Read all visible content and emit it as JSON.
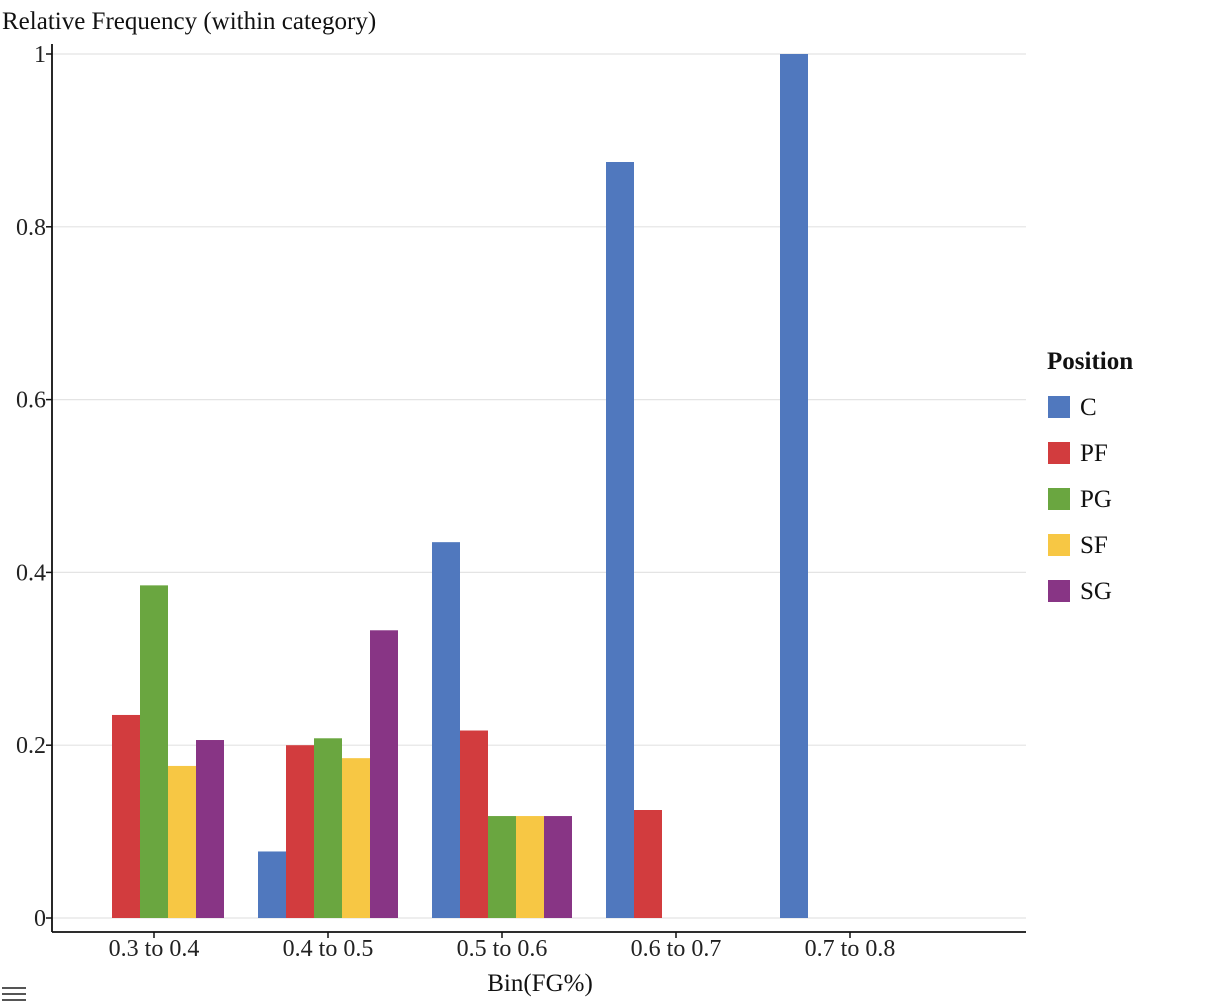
{
  "chart_data": {
    "type": "bar",
    "ylabel": "Relative Frequency (within category)",
    "xlabel": "Bin(FG%)",
    "ylim": [
      0,
      1
    ],
    "yticks": [
      {
        "value": 0,
        "label": "0"
      },
      {
        "value": 0.2,
        "label": "0.2"
      },
      {
        "value": 0.4,
        "label": "0.4"
      },
      {
        "value": 0.6,
        "label": "0.6"
      },
      {
        "value": 0.8,
        "label": "0.8"
      },
      {
        "value": 1,
        "label": "1"
      }
    ],
    "categories": [
      "0.3 to 0.4",
      "0.4 to 0.5",
      "0.5 to 0.6",
      "0.6 to 0.7",
      "0.7 to 0.8"
    ],
    "legend_title": "Position",
    "legend_position": "right",
    "grid": true,
    "series": [
      {
        "name": "C",
        "color": "#5078be",
        "values": [
          0,
          0.077,
          0.435,
          0.875,
          1.0
        ]
      },
      {
        "name": "PF",
        "color": "#d23c3e",
        "values": [
          0.235,
          0.2,
          0.217,
          0.125,
          0
        ]
      },
      {
        "name": "PG",
        "color": "#6aa640",
        "values": [
          0.385,
          0.208,
          0.118,
          0,
          0
        ]
      },
      {
        "name": "SF",
        "color": "#f7c744",
        "values": [
          0.176,
          0.185,
          0.118,
          0,
          0
        ]
      },
      {
        "name": "SG",
        "color": "#883585",
        "values": [
          0.206,
          0.333,
          0.118,
          0,
          0
        ]
      }
    ]
  }
}
